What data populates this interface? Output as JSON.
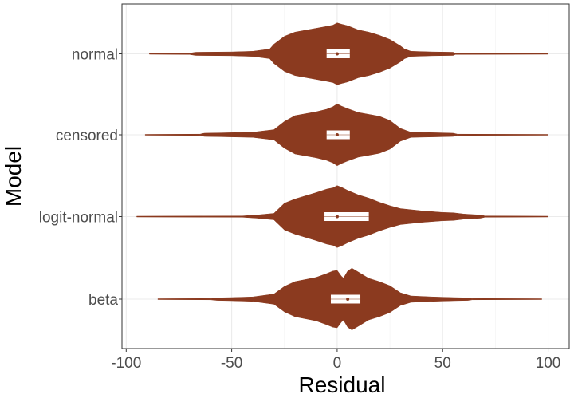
{
  "chart_data": {
    "type": "violin",
    "title": "",
    "xlabel": "Residual",
    "ylabel": "Model",
    "xlim": [
      -102,
      110
    ],
    "x_ticks": [
      -100,
      -50,
      0,
      50,
      100
    ],
    "x_tick_labels": [
      "-100",
      "-50",
      "0",
      "50",
      "100"
    ],
    "grid": true,
    "legend": "none",
    "colors": {
      "fill": "#8b3a1f",
      "box": "#ffffff",
      "grid": "#ebebeb",
      "panel_border": "#333333"
    },
    "categories": [
      "normal",
      "censored",
      "logit-normal",
      "beta"
    ],
    "series": [
      {
        "category": "normal",
        "range": [
          -89,
          100
        ],
        "box": {
          "q1": -5,
          "median": 0,
          "q3": 6
        },
        "mean": 0,
        "profile": [
          [
            -89,
            0.012
          ],
          [
            -70,
            0.02
          ],
          [
            -67,
            0.05
          ],
          [
            -50,
            0.06
          ],
          [
            -40,
            0.08
          ],
          [
            -32,
            0.15
          ],
          [
            -30,
            0.3
          ],
          [
            -25,
            0.55
          ],
          [
            -20,
            0.68
          ],
          [
            -15,
            0.74
          ],
          [
            -10,
            0.8
          ],
          [
            -5,
            0.86
          ],
          [
            -2,
            0.9
          ],
          [
            0,
            0.97
          ],
          [
            2,
            0.93
          ],
          [
            5,
            0.88
          ],
          [
            10,
            0.75
          ],
          [
            15,
            0.68
          ],
          [
            20,
            0.58
          ],
          [
            25,
            0.45
          ],
          [
            30,
            0.25
          ],
          [
            32,
            0.15
          ],
          [
            35,
            0.08
          ],
          [
            45,
            0.06
          ],
          [
            55,
            0.05
          ],
          [
            56,
            0.02
          ],
          [
            100,
            0.012
          ]
        ]
      },
      {
        "category": "censored",
        "range": [
          -91,
          100
        ],
        "box": {
          "q1": -5,
          "median": 0,
          "q3": 6
        },
        "mean": 0,
        "profile": [
          [
            -91,
            0.012
          ],
          [
            -65,
            0.02
          ],
          [
            -63,
            0.05
          ],
          [
            -55,
            0.06
          ],
          [
            -40,
            0.08
          ],
          [
            -30,
            0.16
          ],
          [
            -25,
            0.42
          ],
          [
            -20,
            0.6
          ],
          [
            -15,
            0.66
          ],
          [
            -10,
            0.72
          ],
          [
            -5,
            0.8
          ],
          [
            -2,
            0.88
          ],
          [
            0,
            0.97
          ],
          [
            2,
            0.9
          ],
          [
            5,
            0.82
          ],
          [
            10,
            0.7
          ],
          [
            15,
            0.64
          ],
          [
            20,
            0.58
          ],
          [
            25,
            0.45
          ],
          [
            30,
            0.2
          ],
          [
            35,
            0.08
          ],
          [
            50,
            0.06
          ],
          [
            55,
            0.05
          ],
          [
            57,
            0.02
          ],
          [
            100,
            0.012
          ]
        ]
      },
      {
        "category": "logit-normal",
        "range": [
          -95,
          100
        ],
        "box": {
          "q1": -6,
          "median": 0,
          "q3": 15
        },
        "mean": 0,
        "profile": [
          [
            -95,
            0.012
          ],
          [
            -45,
            0.02
          ],
          [
            -38,
            0.05
          ],
          [
            -30,
            0.1
          ],
          [
            -25,
            0.42
          ],
          [
            -20,
            0.55
          ],
          [
            -15,
            0.65
          ],
          [
            -10,
            0.75
          ],
          [
            -5,
            0.86
          ],
          [
            -2,
            0.9
          ],
          [
            0,
            0.97
          ],
          [
            2,
            0.92
          ],
          [
            5,
            0.82
          ],
          [
            10,
            0.68
          ],
          [
            15,
            0.58
          ],
          [
            20,
            0.45
          ],
          [
            25,
            0.34
          ],
          [
            30,
            0.25
          ],
          [
            40,
            0.18
          ],
          [
            50,
            0.13
          ],
          [
            55,
            0.12
          ],
          [
            60,
            0.08
          ],
          [
            65,
            0.06
          ],
          [
            68,
            0.05
          ],
          [
            70,
            0.02
          ],
          [
            100,
            0.012
          ]
        ]
      },
      {
        "category": "beta",
        "range": [
          -85,
          97
        ],
        "box": {
          "q1": -3,
          "median": 5,
          "q3": 11
        },
        "mean": 5,
        "profile": [
          [
            -85,
            0.012
          ],
          [
            -60,
            0.02
          ],
          [
            -57,
            0.04
          ],
          [
            -50,
            0.05
          ],
          [
            -40,
            0.07
          ],
          [
            -30,
            0.16
          ],
          [
            -25,
            0.4
          ],
          [
            -20,
            0.55
          ],
          [
            -10,
            0.68
          ],
          [
            -5,
            0.8
          ],
          [
            -2,
            0.88
          ],
          [
            0,
            0.9
          ],
          [
            2,
            0.72
          ],
          [
            3,
            0.66
          ],
          [
            5,
            0.88
          ],
          [
            7,
            0.97
          ],
          [
            10,
            0.85
          ],
          [
            15,
            0.65
          ],
          [
            20,
            0.55
          ],
          [
            25,
            0.42
          ],
          [
            30,
            0.2
          ],
          [
            35,
            0.1
          ],
          [
            45,
            0.07
          ],
          [
            55,
            0.05
          ],
          [
            62,
            0.04
          ],
          [
            64,
            0.02
          ],
          [
            97,
            0.012
          ]
        ]
      }
    ]
  }
}
